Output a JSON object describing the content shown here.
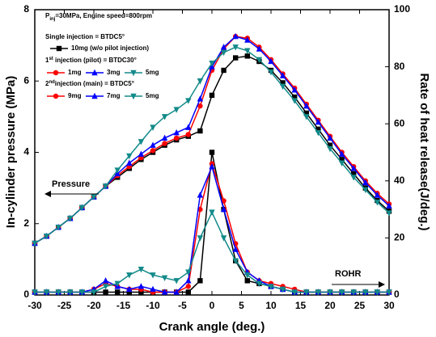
{
  "chart_data": {
    "type": "line",
    "xlabel": "Crank angle (deg.)",
    "ylabel": "In-cylinder pressure (MPa)",
    "y2label": "Rate of heat release(J/deg.)",
    "xlim": [
      -30,
      30
    ],
    "xticks": [
      -30,
      -25,
      -20,
      -15,
      -10,
      -5,
      0,
      5,
      10,
      15,
      20,
      25,
      30
    ],
    "ylim": [
      0,
      8
    ],
    "yticks": [
      0,
      2,
      4,
      6,
      8
    ],
    "y2lim": [
      0,
      100
    ],
    "y2ticks": [
      0,
      20,
      40,
      60,
      80,
      100
    ],
    "x": [
      -30,
      -28,
      -26,
      -24,
      -22,
      -20,
      -18,
      -16,
      -14,
      -12,
      -10,
      -8,
      -6,
      -4,
      -2,
      0,
      2,
      4,
      6,
      8,
      10,
      12,
      14,
      16,
      18,
      20,
      22,
      24,
      26,
      28,
      30
    ],
    "condition": [
      "P",
      "inj",
      "=30MPa, Engine speed=800rpm"
    ],
    "single_header": "Single injection = BTDC5°",
    "pilot_header": [
      "1",
      "st",
      " injection (pilot) = BTDC30°"
    ],
    "main_header": [
      "2",
      "nd",
      "injection (main) = BTDC5°"
    ],
    "series": [
      {
        "name": "10mg (w/o pilot injection)",
        "color": "#000000",
        "marker": "square",
        "values": [
          1.45,
          1.65,
          1.9,
          2.15,
          2.45,
          2.75,
          3.05,
          3.3,
          3.55,
          3.8,
          4.0,
          4.2,
          4.35,
          4.45,
          4.6,
          5.6,
          6.3,
          6.65,
          6.7,
          6.55,
          6.3,
          5.95,
          5.55,
          5.1,
          4.65,
          4.2,
          3.8,
          3.4,
          3.0,
          2.65,
          2.35
        ]
      },
      {
        "name": "1mg",
        "main_name": "9mg",
        "color": "#ff0000",
        "marker": "circle",
        "values": [
          1.45,
          1.65,
          1.9,
          2.15,
          2.45,
          2.75,
          3.05,
          3.35,
          3.6,
          3.85,
          4.05,
          4.25,
          4.4,
          4.5,
          5.3,
          6.3,
          6.9,
          7.25,
          7.2,
          6.95,
          6.6,
          6.2,
          5.8,
          5.35,
          4.9,
          4.45,
          4.0,
          3.6,
          3.2,
          2.85,
          2.55
        ]
      },
      {
        "name": "3mg",
        "main_name": "7mg",
        "color": "#0000ff",
        "marker": "triangle-up",
        "values": [
          1.45,
          1.65,
          1.9,
          2.15,
          2.45,
          2.75,
          3.05,
          3.4,
          3.7,
          3.95,
          4.2,
          4.4,
          4.55,
          4.7,
          5.5,
          6.4,
          6.95,
          7.25,
          7.15,
          6.9,
          6.55,
          6.15,
          5.75,
          5.3,
          4.85,
          4.4,
          3.95,
          3.55,
          3.15,
          2.8,
          2.5
        ]
      },
      {
        "name": "5mg",
        "main_name": "5mg",
        "color": "#138a8a",
        "marker": "triangle-down",
        "values": [
          1.45,
          1.65,
          1.9,
          2.15,
          2.45,
          2.75,
          3.05,
          3.5,
          3.9,
          4.3,
          4.7,
          5.0,
          5.2,
          5.45,
          6.0,
          6.5,
          6.8,
          6.95,
          6.85,
          6.6,
          6.25,
          5.85,
          5.45,
          5.0,
          4.55,
          4.1,
          3.7,
          3.3,
          2.95,
          2.6,
          2.3
        ]
      }
    ],
    "rohr_series": [
      {
        "axis": "y2",
        "color": "#000000",
        "marker": "square",
        "values": [
          1,
          1,
          1,
          1,
          1,
          1,
          1,
          1,
          1,
          1,
          1,
          1,
          1,
          1,
          5,
          50,
          30,
          12,
          5,
          4,
          3,
          2,
          1,
          1,
          1,
          1,
          1,
          1,
          1,
          1,
          1
        ]
      },
      {
        "axis": "y2",
        "color": "#ff0000",
        "marker": "circle",
        "values": [
          1,
          1,
          1,
          1,
          1,
          2,
          4,
          3,
          2,
          2,
          1,
          1,
          1,
          3,
          30,
          46,
          33,
          18,
          8,
          5,
          4,
          3,
          2,
          1,
          1,
          1,
          1,
          1,
          1,
          1,
          1
        ]
      },
      {
        "axis": "y2",
        "color": "#0000ff",
        "marker": "triangle-up",
        "values": [
          1,
          1,
          1,
          1,
          1,
          2,
          5,
          3,
          2,
          3,
          2,
          1,
          1,
          5,
          35,
          45,
          30,
          16,
          8,
          5,
          3,
          2,
          1,
          1,
          1,
          1,
          1,
          1,
          1,
          1,
          1
        ]
      },
      {
        "axis": "y2",
        "color": "#138a8a",
        "marker": "triangle-down",
        "values": [
          1,
          1,
          1,
          1,
          1,
          1,
          3,
          4,
          7,
          9,
          7,
          6,
          5,
          8,
          20,
          29,
          20,
          12,
          7,
          4,
          3,
          2,
          1,
          1,
          1,
          1,
          1,
          1,
          1,
          1,
          1
        ]
      }
    ],
    "annotations": [
      "Pressure",
      "ROHR"
    ]
  }
}
